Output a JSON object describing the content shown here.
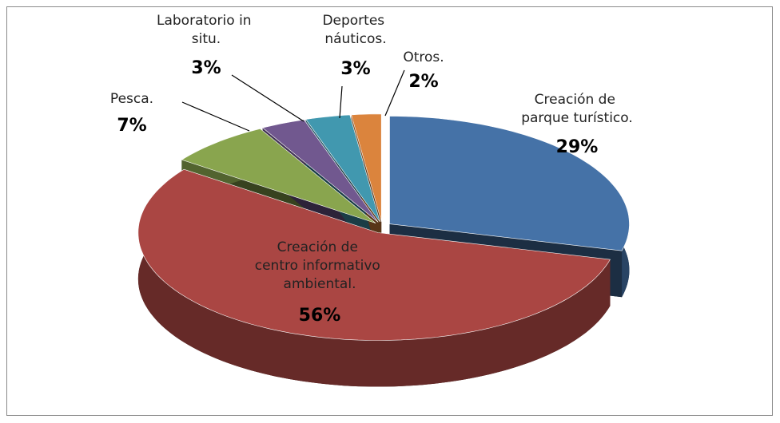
{
  "chart_data": {
    "type": "pie3d",
    "categories": [
      "Creación de parque turístico.",
      "Creación de centro informativo ambiental.",
      "Pesca.",
      "Laboratorio in situ.",
      "Deportes náuticos.",
      "Otros."
    ],
    "values": [
      29,
      56,
      7,
      3,
      3,
      2
    ],
    "value_labels": [
      "29%",
      "56%",
      "7%",
      "3%",
      "3%",
      "2%"
    ],
    "colors": [
      "#4572a7",
      "#aa4643",
      "#89a54e",
      "#71588f",
      "#4198af",
      "#db843d"
    ]
  }
}
